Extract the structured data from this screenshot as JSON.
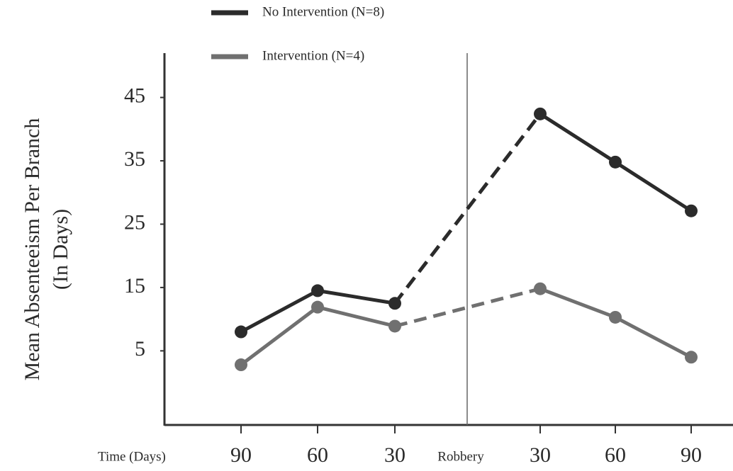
{
  "chart_data": {
    "type": "line",
    "y_label": [
      "Mean Absenteeism Per Branch",
      "(In Days)"
    ],
    "x_label": "Time (Days)",
    "categories": [
      "90",
      "60",
      "30",
      "30",
      "60",
      "90"
    ],
    "event_label": "Robbery",
    "series": [
      {
        "name": "No Intervention (N=8)",
        "color": "#2b2b2b",
        "values": [
          8.0,
          14.5,
          12.5,
          42.4,
          34.8,
          27.1
        ]
      },
      {
        "name": "Intervention (N=4)",
        "color": "#707070",
        "values": [
          2.8,
          11.9,
          8.9,
          14.8,
          10.3,
          4.0
        ]
      }
    ],
    "ylim": [
      -6.7,
      52
    ],
    "yticks": [
      5,
      15,
      25,
      35,
      45
    ]
  }
}
